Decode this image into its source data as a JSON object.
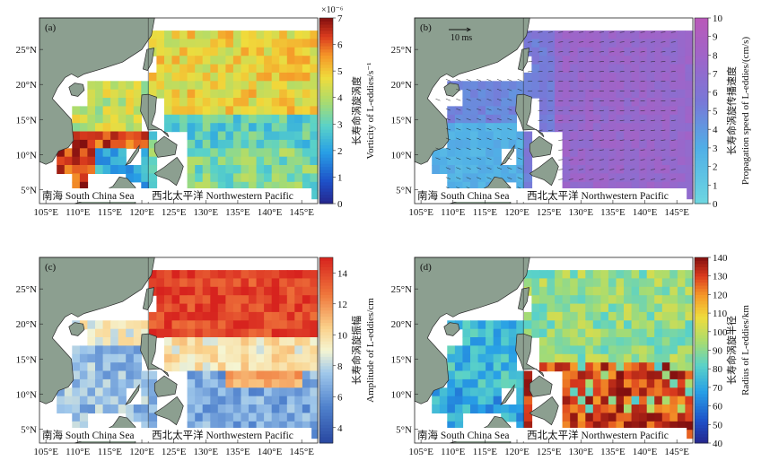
{
  "figure": {
    "panels": [
      {
        "id": "a",
        "tag": "(a)",
        "colormap": "jet",
        "colorbar": {
          "min": 0,
          "max": 7,
          "ticks": [
            "0",
            "1",
            "2",
            "3",
            "4",
            "5",
            "6",
            "7"
          ],
          "exponent": "×10⁻⁶",
          "label_cn": "长寿命涡旋涡度",
          "label_en": "Vorticity of L-eddies/s⁻¹"
        },
        "field_seed": 1
      },
      {
        "id": "b",
        "tag": "(b)",
        "colormap": "cool",
        "colorbar": {
          "min": 0,
          "max": 10,
          "ticks": [
            "0",
            "1",
            "2",
            "3",
            "4",
            "5",
            "6",
            "7",
            "8",
            "9",
            "10"
          ],
          "exponent": "",
          "label_cn": "长寿命涡旋传播速度",
          "label_en": "Propagation speed of L-eddies/(cm/s)"
        },
        "arrow_legend": "10 ms",
        "field_seed": 2
      },
      {
        "id": "c",
        "tag": "(c)",
        "colormap": "rdylbu",
        "colorbar": {
          "min": 3,
          "max": 15,
          "ticks": [
            "4",
            "6",
            "8",
            "10",
            "12",
            "14"
          ],
          "exponent": "",
          "label_cn": "长寿命涡旋振幅",
          "label_en": "Amplitude of L-eddies/cm"
        },
        "field_seed": 3
      },
      {
        "id": "d",
        "tag": "(d)",
        "colormap": "jet",
        "colorbar": {
          "min": 40,
          "max": 140,
          "ticks": [
            "40",
            "50",
            "60",
            "70",
            "80",
            "90",
            "100",
            "110",
            "120",
            "130",
            "140"
          ],
          "exponent": "",
          "label_cn": "长寿命涡旋半径",
          "label_en": "Radius of L-eddies/km"
        },
        "field_seed": 4
      }
    ],
    "region_labels": {
      "south_china_sea": "南海 South China Sea",
      "nw_pacific": "西北太平洋 Northwestern Pacific"
    },
    "lat_ticks": [
      "5°N",
      "10°N",
      "15°N",
      "20°N",
      "25°N"
    ],
    "lon_ticks": [
      "105°E",
      "110°E",
      "115°E",
      "120°E",
      "125°E",
      "130°E",
      "135°E",
      "140°E",
      "145°E"
    ]
  }
}
